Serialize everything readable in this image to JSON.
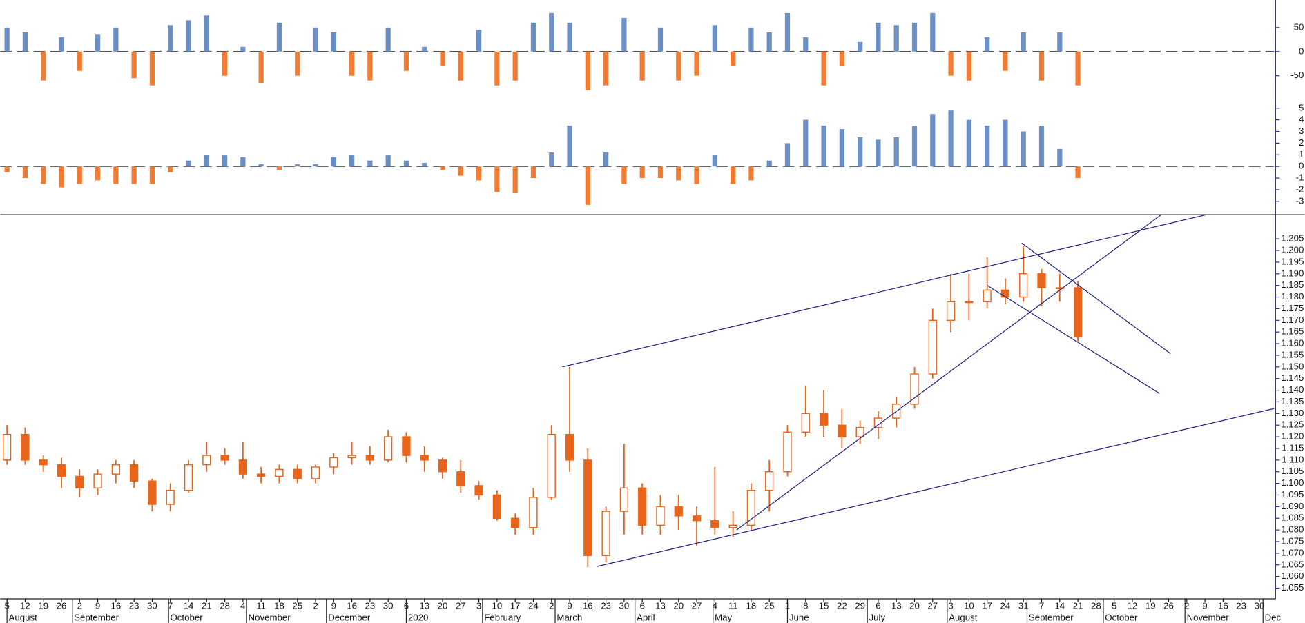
{
  "chart_data": [
    {
      "type": "bar",
      "up_color": "#6b8fc4",
      "down_color": "#f07c33",
      "ylim": [
        -96.6,
        107
      ],
      "yticks": [
        -50,
        0,
        50
      ],
      "x": [
        0,
        1,
        2,
        3,
        4,
        5,
        6,
        7,
        8,
        9,
        10,
        11,
        12,
        13,
        14,
        15,
        16,
        17,
        18,
        19,
        20,
        21,
        22,
        23,
        24,
        25,
        26,
        27,
        28,
        29,
        30,
        31,
        32,
        33,
        34,
        35,
        36,
        37,
        38,
        39,
        40,
        41,
        42,
        43,
        44,
        45,
        46,
        47,
        48,
        49,
        50,
        51,
        52,
        53,
        54,
        55,
        56,
        57,
        58,
        59
      ],
      "values": [
        50,
        40,
        -60,
        30,
        -40,
        35,
        50,
        -55,
        -70,
        55,
        65,
        75,
        -50,
        10,
        -65,
        60,
        -50,
        50,
        40,
        -50,
        -60,
        50,
        -40,
        10,
        -30,
        -60,
        45,
        -70,
        -60,
        60,
        80,
        60,
        -80,
        -70,
        70,
        -60,
        50,
        -60,
        -50,
        55,
        -30,
        50,
        40,
        80,
        30,
        -70,
        -30,
        20,
        60,
        55,
        60,
        80,
        -50,
        -60,
        30,
        -40,
        40,
        -60,
        40,
        -70
      ]
    },
    {
      "type": "bar",
      "up_color": "#6b8fc4",
      "down_color": "#f07c33",
      "ylim": [
        -4.14,
        5.86
      ],
      "yticks": [
        -3,
        -2,
        -1,
        0,
        1,
        2,
        3,
        4,
        5
      ],
      "x": [
        0,
        1,
        2,
        3,
        4,
        5,
        6,
        7,
        8,
        9,
        10,
        11,
        12,
        13,
        14,
        15,
        16,
        17,
        18,
        19,
        20,
        21,
        22,
        23,
        24,
        25,
        26,
        27,
        28,
        29,
        30,
        31,
        32,
        33,
        34,
        35,
        36,
        37,
        38,
        39,
        40,
        41,
        42,
        43,
        44,
        45,
        46,
        47,
        48,
        49,
        50,
        51,
        52,
        53,
        54,
        55,
        56,
        57,
        58,
        59
      ],
      "values": [
        -0.5,
        -1,
        -1.5,
        -1.8,
        -1.5,
        -1.2,
        -1.5,
        -1.5,
        -1.5,
        -0.5,
        0.5,
        1,
        1,
        0.8,
        0.2,
        -0.3,
        0.2,
        0.2,
        0.8,
        1,
        0.5,
        1,
        0.5,
        0.3,
        -0.3,
        -0.8,
        -1.2,
        -2.2,
        -2.3,
        -1,
        1.2,
        3.5,
        -3.3,
        1.2,
        -1.5,
        -1,
        -1,
        -1.2,
        -1.5,
        1,
        -1.5,
        -1.2,
        0.5,
        2,
        4,
        3.5,
        3.2,
        2.5,
        2.3,
        2.5,
        3.5,
        4.5,
        4.8,
        4,
        3.5,
        4,
        3,
        3.5,
        1.5,
        -1
      ]
    },
    {
      "type": "candlestick",
      "color": "#e8641b",
      "line_color": "#1c1c80",
      "ylim": [
        1.0504,
        1.2154
      ],
      "xlim": [
        -0.37,
        69.8
      ],
      "yticks": [
        1.055,
        {
          "value": 1.06,
          "label": "1.060"
        },
        1.065,
        {
          "value": 1.07,
          "label": "1.070"
        },
        1.075,
        {
          "value": 1.08,
          "label": "1.080"
        },
        1.085,
        {
          "value": 1.09,
          "label": "1.090"
        },
        1.095,
        {
          "value": 1.1,
          "label": "1.100"
        },
        1.105,
        {
          "value": 1.11,
          "label": "1.110"
        },
        1.115,
        {
          "value": 1.12,
          "label": "1.120"
        },
        1.125,
        {
          "value": 1.13,
          "label": "1.130"
        },
        1.135,
        {
          "value": 1.14,
          "label": "1.140"
        },
        1.145,
        {
          "value": 1.15,
          "label": "1.150"
        },
        1.155,
        {
          "value": 1.16,
          "label": "1.160"
        },
        1.165,
        {
          "value": 1.17,
          "label": "1.170"
        },
        1.175,
        {
          "value": 1.18,
          "label": "1.180"
        },
        1.185,
        {
          "value": 1.19,
          "label": "1.190"
        },
        1.195,
        {
          "value": 1.2,
          "label": "1.200"
        },
        1.205
      ],
      "xticks": [
        {
          "value": 0,
          "label": "5"
        },
        {
          "value": 1,
          "label": "12"
        },
        {
          "value": 2,
          "label": "19"
        },
        {
          "value": 3,
          "label": "26"
        },
        {
          "value": 4,
          "label": "2"
        },
        {
          "value": 5,
          "label": "9"
        },
        {
          "value": 6,
          "label": "16"
        },
        {
          "value": 7,
          "label": "23"
        },
        {
          "value": 8,
          "label": "30"
        },
        {
          "value": 9,
          "label": "7"
        },
        {
          "value": 10,
          "label": "14"
        },
        {
          "value": 11,
          "label": "21"
        },
        {
          "value": 12,
          "label": "28"
        },
        {
          "value": 13,
          "label": "4"
        },
        {
          "value": 14,
          "label": "11"
        },
        {
          "value": 15,
          "label": "18"
        },
        {
          "value": 16,
          "label": "25"
        },
        {
          "value": 17,
          "label": "2"
        },
        {
          "value": 18,
          "label": "9"
        },
        {
          "value": 19,
          "label": "16"
        },
        {
          "value": 20,
          "label": "23"
        },
        {
          "value": 21,
          "label": "30"
        },
        {
          "value": 22,
          "label": "6"
        },
        {
          "value": 23,
          "label": "13"
        },
        {
          "value": 24,
          "label": "20"
        },
        {
          "value": 25,
          "label": "27"
        },
        {
          "value": 26,
          "label": "3"
        },
        {
          "value": 27,
          "label": "10"
        },
        {
          "value": 28,
          "label": "17"
        },
        {
          "value": 29,
          "label": "24"
        },
        {
          "value": 30,
          "label": "2"
        },
        {
          "value": 31,
          "label": "9"
        },
        {
          "value": 32,
          "label": "16"
        },
        {
          "value": 33,
          "label": "23"
        },
        {
          "value": 34,
          "label": "30"
        },
        {
          "value": 35,
          "label": "6"
        },
        {
          "value": 36,
          "label": "13"
        },
        {
          "value": 37,
          "label": "20"
        },
        {
          "value": 38,
          "label": "27"
        },
        {
          "value": 39,
          "label": "4"
        },
        {
          "value": 40,
          "label": "11"
        },
        {
          "value": 41,
          "label": "18"
        },
        {
          "value": 42,
          "label": "25"
        },
        {
          "value": 43,
          "label": "1"
        },
        {
          "value": 44,
          "label": "8"
        },
        {
          "value": 45,
          "label": "15"
        },
        {
          "value": 46,
          "label": "22"
        },
        {
          "value": 47,
          "label": "29"
        },
        {
          "value": 48,
          "label": "6"
        },
        {
          "value": 49,
          "label": "13"
        },
        {
          "value": 50,
          "label": "20"
        },
        {
          "value": 51,
          "label": "27"
        },
        {
          "value": 52,
          "label": "3"
        },
        {
          "value": 53,
          "label": "10"
        },
        {
          "value": 54,
          "label": "17"
        },
        {
          "value": 55,
          "label": "24"
        },
        {
          "value": 56,
          "label": "31"
        },
        {
          "value": 57,
          "label": "7"
        },
        {
          "value": 58,
          "label": "14"
        },
        {
          "value": 59,
          "label": "21"
        },
        {
          "value": 60,
          "label": "28"
        },
        {
          "value": 61,
          "label": "5"
        },
        {
          "value": 62,
          "label": "12"
        },
        {
          "value": 63,
          "label": "19"
        },
        {
          "value": 64,
          "label": "26"
        },
        {
          "value": 65,
          "label": "2"
        },
        {
          "value": 66,
          "label": "9"
        },
        {
          "value": 67,
          "label": "16"
        },
        {
          "value": 68,
          "label": "23"
        },
        {
          "value": 69,
          "label": "30"
        }
      ],
      "month_labels": [
        {
          "value": 0,
          "label": "August"
        },
        {
          "value": 3.6,
          "label": "September"
        },
        {
          "value": 8.9,
          "label": "October"
        },
        {
          "value": 13.2,
          "label": "November"
        },
        {
          "value": 17.6,
          "label": "December"
        },
        {
          "value": 22,
          "label": "2020"
        },
        {
          "value": 26.2,
          "label": "February"
        },
        {
          "value": 30.2,
          "label": "March"
        },
        {
          "value": 34.6,
          "label": "April"
        },
        {
          "value": 38.9,
          "label": "May"
        },
        {
          "value": 43,
          "label": "June"
        },
        {
          "value": 47.4,
          "label": "July"
        },
        {
          "value": 51.8,
          "label": "August"
        },
        {
          "value": 56.2,
          "label": "September"
        },
        {
          "value": 60.4,
          "label": "October"
        },
        {
          "value": 64.9,
          "label": "November"
        },
        {
          "value": 69.2,
          "label": "Dec"
        }
      ],
      "x": [
        0,
        1,
        2,
        3,
        4,
        5,
        6,
        7,
        8,
        9,
        10,
        11,
        12,
        13,
        14,
        15,
        16,
        17,
        18,
        19,
        20,
        21,
        22,
        23,
        24,
        25,
        26,
        27,
        28,
        29,
        30,
        31,
        32,
        33,
        34,
        35,
        36,
        37,
        38,
        39,
        40,
        41,
        42,
        43,
        44,
        45,
        46,
        47,
        48,
        49,
        50,
        51,
        52,
        53,
        54,
        55,
        56,
        57,
        58,
        59
      ],
      "open": [
        1.11,
        1.121,
        1.11,
        1.108,
        1.103,
        1.098,
        1.104,
        1.108,
        1.101,
        1.091,
        1.097,
        1.108,
        1.112,
        1.11,
        1.104,
        1.103,
        1.106,
        1.102,
        1.107,
        1.111,
        1.112,
        1.11,
        1.12,
        1.112,
        1.11,
        1.105,
        1.099,
        1.095,
        1.085,
        1.081,
        1.094,
        1.121,
        1.11,
        1.069,
        1.088,
        1.098,
        1.082,
        1.09,
        1.086,
        1.084,
        1.081,
        1.082,
        1.097,
        1.105,
        1.122,
        1.13,
        1.125,
        1.12,
        1.124,
        1.128,
        1.134,
        1.147,
        1.17,
        1.178,
        1.178,
        1.183,
        1.18,
        1.19,
        1.184,
        1.184
      ],
      "high": [
        1.125,
        1.124,
        1.112,
        1.111,
        1.106,
        1.106,
        1.11,
        1.11,
        1.102,
        1.1,
        1.11,
        1.118,
        1.115,
        1.118,
        1.107,
        1.108,
        1.108,
        1.108,
        1.113,
        1.118,
        1.116,
        1.123,
        1.122,
        1.116,
        1.111,
        1.11,
        1.101,
        1.097,
        1.087,
        1.098,
        1.125,
        1.15,
        1.115,
        1.09,
        1.117,
        1.1,
        1.095,
        1.095,
        1.09,
        1.107,
        1.088,
        1.1,
        1.11,
        1.125,
        1.142,
        1.14,
        1.132,
        1.127,
        1.131,
        1.137,
        1.15,
        1.175,
        1.19,
        1.19,
        1.197,
        1.188,
        1.202,
        1.192,
        1.19,
        1.187
      ],
      "low": [
        1.108,
        1.108,
        1.105,
        1.098,
        1.094,
        1.095,
        1.1,
        1.098,
        1.088,
        1.088,
        1.096,
        1.105,
        1.108,
        1.102,
        1.1,
        1.1,
        1.1,
        1.1,
        1.104,
        1.108,
        1.108,
        1.109,
        1.109,
        1.105,
        1.102,
        1.096,
        1.093,
        1.084,
        1.078,
        1.078,
        1.093,
        1.105,
        1.064,
        1.066,
        1.078,
        1.078,
        1.078,
        1.08,
        1.073,
        1.078,
        1.077,
        1.08,
        1.088,
        1.103,
        1.12,
        1.12,
        1.115,
        1.117,
        1.119,
        1.124,
        1.132,
        1.145,
        1.165,
        1.17,
        1.175,
        1.177,
        1.178,
        1.176,
        1.178,
        1.161
      ],
      "close": [
        1.121,
        1.11,
        1.108,
        1.103,
        1.098,
        1.104,
        1.108,
        1.101,
        1.091,
        1.097,
        1.108,
        1.112,
        1.11,
        1.104,
        1.103,
        1.106,
        1.102,
        1.107,
        1.111,
        1.112,
        1.11,
        1.12,
        1.112,
        1.11,
        1.105,
        1.099,
        1.095,
        1.085,
        1.081,
        1.094,
        1.121,
        1.11,
        1.069,
        1.088,
        1.098,
        1.082,
        1.09,
        1.086,
        1.084,
        1.081,
        1.082,
        1.097,
        1.105,
        1.122,
        1.13,
        1.125,
        1.12,
        1.124,
        1.128,
        1.134,
        1.147,
        1.17,
        1.178,
        1.178,
        1.183,
        1.18,
        1.19,
        1.184,
        1.184,
        1.163
      ],
      "trend_lines": [
        {
          "x": [
            30.6,
            66.1
          ],
          "y": [
            1.15,
            1.2154
          ]
        },
        {
          "x": [
            32.5,
            69.8
          ],
          "y": [
            1.0643,
            1.1321
          ]
        },
        {
          "x": [
            40.2,
            63.6
          ],
          "y": [
            1.08,
            1.2154
          ]
        },
        {
          "x": [
            55.9,
            64.1
          ],
          "y": [
            1.2032,
            1.1557
          ]
        },
        {
          "x": [
            54.0,
            63.5
          ],
          "y": [
            1.185,
            1.1386
          ]
        }
      ]
    }
  ]
}
